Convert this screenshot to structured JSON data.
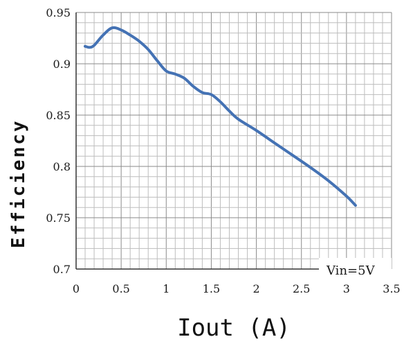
{
  "chart_data": {
    "type": "line",
    "title": "",
    "xlabel": "Iout (A)",
    "ylabel": "Efficiency",
    "xlim": [
      0,
      3.5
    ],
    "ylim": [
      0.7,
      0.95
    ],
    "x_ticks": [
      "0",
      "0.5",
      "1",
      "1.5",
      "2",
      "2.5",
      "3",
      "3.5"
    ],
    "y_ticks": [
      "0.7",
      "0.75",
      "0.8",
      "0.85",
      "0.9",
      "0.95"
    ],
    "grid": true,
    "annotation": "Vin=5V",
    "line_color": "#4472b4",
    "series": [
      {
        "x": [
          0.1,
          0.15,
          0.2,
          0.3,
          0.4,
          0.5,
          0.6,
          0.7,
          0.8,
          0.9,
          1.0,
          1.1,
          1.2,
          1.3,
          1.4,
          1.5,
          1.6,
          1.7,
          1.8,
          2.0,
          2.2,
          2.4,
          2.6,
          2.8,
          3.0,
          3.1
        ],
        "y": [
          0.917,
          0.916,
          0.918,
          0.928,
          0.935,
          0.933,
          0.928,
          0.922,
          0.914,
          0.903,
          0.893,
          0.89,
          0.886,
          0.878,
          0.872,
          0.87,
          0.863,
          0.854,
          0.846,
          0.835,
          0.823,
          0.811,
          0.799,
          0.786,
          0.771,
          0.762
        ]
      }
    ]
  }
}
